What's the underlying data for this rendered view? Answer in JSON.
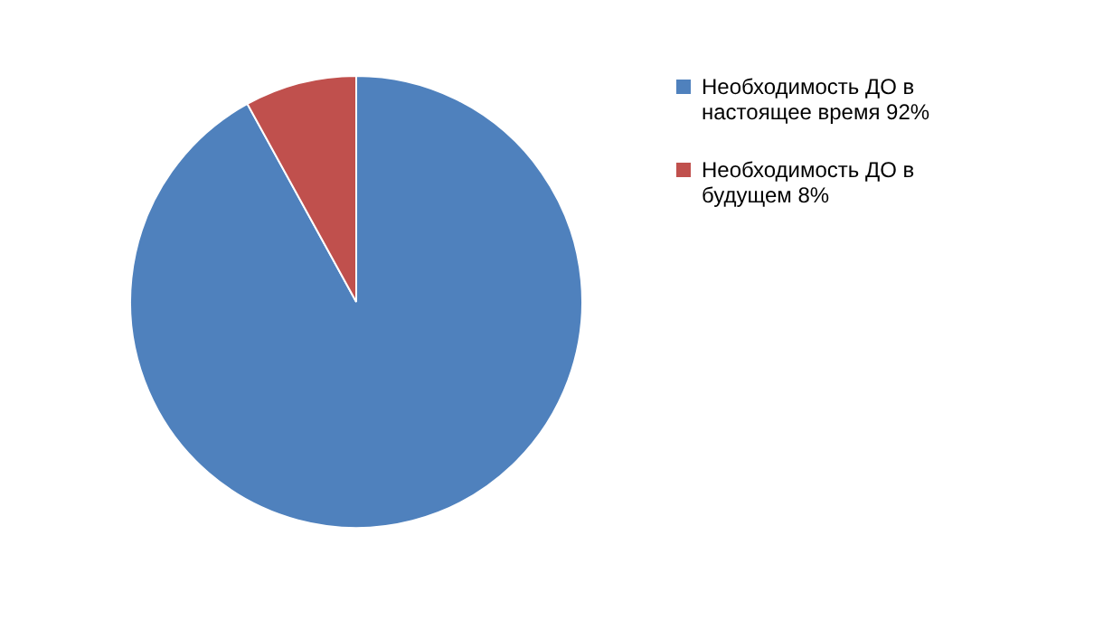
{
  "chart_data": {
    "type": "pie",
    "categories": [
      "Необходимость ДО в настоящее время 92%",
      "Необходимость ДО в будущем 8%"
    ],
    "values": [
      92,
      8
    ],
    "colors": [
      "#4f81bd",
      "#c0504d"
    ],
    "legend": "right"
  }
}
